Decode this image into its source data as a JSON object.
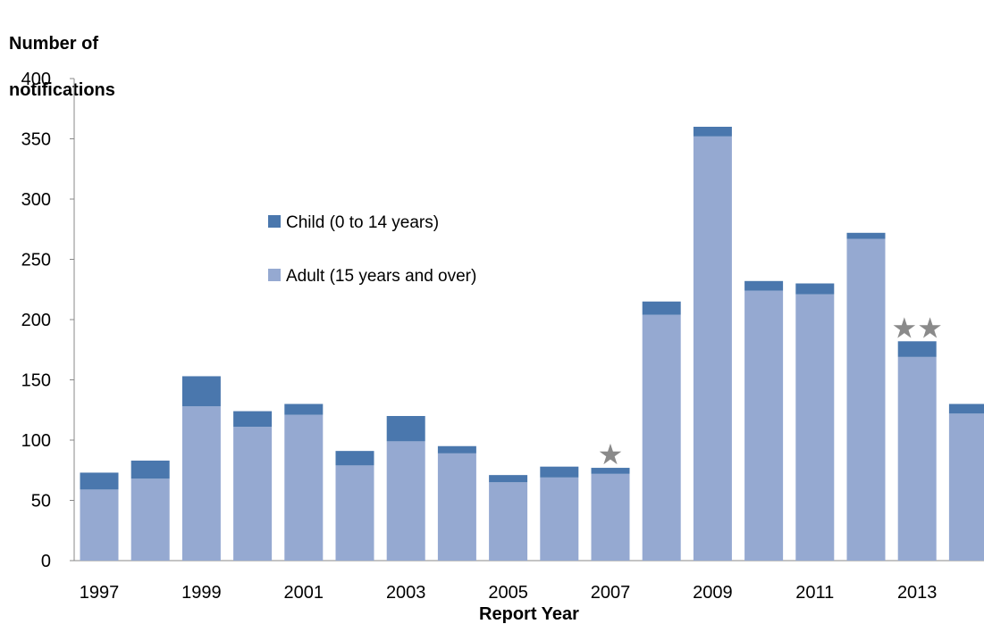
{
  "chart_data": {
    "type": "bar",
    "stacked": true,
    "ylabel_lines": [
      "Number of",
      "notifications"
    ],
    "xlabel": "Report Year",
    "ylim": [
      0,
      400
    ],
    "yticks": [
      0,
      50,
      100,
      150,
      200,
      250,
      300,
      350,
      400
    ],
    "categories": [
      "1997",
      "1998",
      "1999",
      "2000",
      "2001",
      "2002",
      "2003",
      "2004",
      "2005",
      "2006",
      "2007",
      "2008",
      "2009",
      "2010",
      "2011",
      "2012",
      "2013",
      "2014"
    ],
    "x_tick_labels": [
      "1997",
      "",
      "1999",
      "",
      "2001",
      "",
      "2003",
      "",
      "2005",
      "",
      "2007",
      "",
      "2009",
      "",
      "2011",
      "",
      "2013",
      ""
    ],
    "series": [
      {
        "name": "Adult (15 years and over)",
        "color": "#95a9d1",
        "values": [
          59,
          68,
          128,
          111,
          121,
          79,
          99,
          89,
          65,
          69,
          72,
          204,
          352,
          224,
          221,
          267,
          169,
          122
        ]
      },
      {
        "name": "Child (0 to 14 years)",
        "color": "#4a77ad",
        "values": [
          14,
          15,
          25,
          13,
          9,
          12,
          21,
          6,
          6,
          9,
          5,
          11,
          8,
          8,
          9,
          5,
          13,
          8
        ]
      }
    ],
    "legend_order": [
      "Child (0 to 14 years)",
      "Adult (15 years and over)"
    ],
    "legend_position": "upper-left-center",
    "annotations": [
      {
        "category": "2007",
        "symbol": "★",
        "color": "#8a8a8a"
      },
      {
        "category": "2013",
        "symbol": "★★",
        "color": "#8a8a8a"
      }
    ],
    "grid": false
  }
}
